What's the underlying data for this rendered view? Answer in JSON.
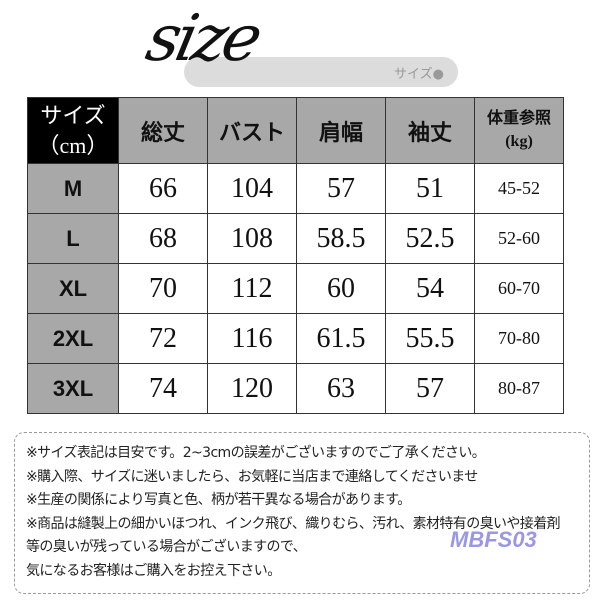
{
  "title": {
    "script_text": "size",
    "pill_label": "サイズ●"
  },
  "table": {
    "corner": [
      "サイズ",
      "（cm）"
    ],
    "headers": [
      "総丈",
      "バスト",
      "肩幅",
      "袖丈"
    ],
    "weight_header": [
      "体重参照",
      "(kg)"
    ],
    "rows": [
      {
        "size": "M",
        "values": [
          "66",
          "104",
          "57",
          "51"
        ],
        "weight": "45-52"
      },
      {
        "size": "L",
        "values": [
          "68",
          "108",
          "58.5",
          "52.5"
        ],
        "weight": "52-60"
      },
      {
        "size": "XL",
        "values": [
          "70",
          "112",
          "60",
          "54"
        ],
        "weight": "60-70"
      },
      {
        "size": "2XL",
        "values": [
          "72",
          "116",
          "61.5",
          "55.5"
        ],
        "weight": "70-80"
      },
      {
        "size": "3XL",
        "values": [
          "74",
          "120",
          "63",
          "57"
        ],
        "weight": "80-87"
      }
    ]
  },
  "notes": [
    "※サイズ表記は目安です。2~3cmの誤差がございますのでご了承ください。",
    "※購入際、サイズに迷いましたら、お気軽に当店まで連絡してくださいませ",
    "※生産の関係により写真と色、柄が若干異なる場合があります。",
    "※商品は縫製上の細かいほつれ、インク飛び、織りむら、汚れ、素材特有の臭いや接着剤",
    "等の臭いが残っている場合がございますので、",
    "気になるお客様はご購入をお控え下さい。"
  ],
  "watermark": "MBFS03"
}
